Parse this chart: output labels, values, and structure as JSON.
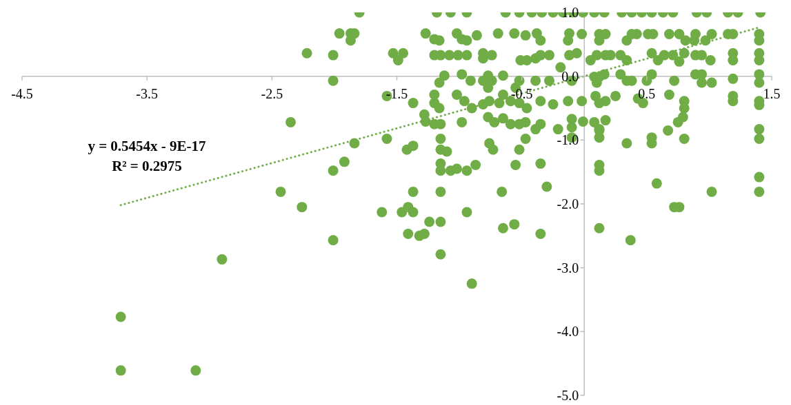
{
  "chart_data": {
    "type": "scatter",
    "xlim": [
      -4.5,
      1.5
    ],
    "xticks": [
      -4.5,
      -3.5,
      -2.5,
      -1.5,
      -0.5,
      0.5,
      1.5
    ],
    "ylim": [
      -5,
      1
    ],
    "yticks": [
      {
        "value": 1,
        "label": "1.0"
      },
      {
        "value": 0,
        "label": "0.0"
      },
      {
        "value": -1,
        "label": "-1.0"
      },
      {
        "value": -2,
        "label": "-2.0"
      },
      {
        "value": -3,
        "label": "-3.0"
      },
      {
        "value": -4,
        "label": "-4.0"
      },
      {
        "value": -5,
        "label": "-5.0"
      }
    ],
    "annotations": [
      "y = 0.5454x - 9E-17",
      "R² = 0.2975"
    ],
    "series": [
      {
        "marker": "circle",
        "color": "#70ad47",
        "x": [
          -1.8,
          -1.18,
          -1.07,
          -0.94,
          -0.63,
          -0.52,
          -0.42,
          -0.34,
          -0.25,
          -0.17,
          -0.09,
          -0.01,
          0.08,
          0.16,
          0.3,
          0.38,
          0.46,
          0.54,
          0.63,
          0.71,
          0.9,
          0.98,
          1.15,
          1.23,
          1.41,
          -1.96,
          -1.87,
          -1.84,
          -1.87,
          -1.27,
          -1.2,
          -1.16,
          -1.02,
          -0.98,
          -0.94,
          -0.86,
          -0.69,
          -0.56,
          -0.47,
          -0.38,
          -0.35,
          -0.12,
          -0.13,
          -0.02,
          0.12,
          0.17,
          0.12,
          0.34,
          0.38,
          0.42,
          0.51,
          0.55,
          0.68,
          0.76,
          0.81,
          0.89,
          0.88,
          0.97,
          1.02,
          1.15,
          1.19,
          1.4,
          1.4,
          -2.22,
          -2.01,
          -1.53,
          -1.45,
          -1.49,
          -1.2,
          -1.15,
          -1.08,
          -1.01,
          -0.94,
          -0.81,
          -0.81,
          -0.74,
          -0.51,
          -0.46,
          -0.39,
          -0.35,
          -0.28,
          -0.19,
          -0.12,
          -0.06,
          0.05,
          0.1,
          0.17,
          0.21,
          0.29,
          0.34,
          0.54,
          0.59,
          0.64,
          0.71,
          0.76,
          0.8,
          0.89,
          0.94,
          1.01,
          1.19,
          1.19,
          1.4,
          1.4,
          -2.01,
          -1.12,
          -1.16,
          -0.98,
          -0.91,
          -0.81,
          -0.77,
          -0.74,
          -0.77,
          -0.65,
          -0.55,
          -0.52,
          -0.39,
          -0.28,
          -0.1,
          0.08,
          0.12,
          0.16,
          0.1,
          0.29,
          0.34,
          0.38,
          0.5,
          0.54,
          0.72,
          0.89,
          0.94,
          0.94,
          1.02,
          1.19,
          1.4,
          1.4,
          -1.58,
          -1.37,
          -1.2,
          -1.2,
          -1.16,
          -1.02,
          -0.96,
          -0.9,
          -0.81,
          -0.76,
          -0.68,
          -0.65,
          -0.59,
          -0.52,
          -0.46,
          -0.35,
          -0.25,
          -0.13,
          -0.02,
          0.09,
          0.12,
          0.17,
          0.25,
          0.43,
          0.47,
          0.68,
          0.8,
          0.8,
          1.19,
          1.19,
          1.4,
          1.4,
          -2.35,
          -1.28,
          -1.27,
          -1.2,
          -1.15,
          -0.98,
          -0.77,
          -0.72,
          -0.65,
          -0.59,
          -0.52,
          -0.47,
          -0.39,
          -0.35,
          -0.21,
          -0.1,
          -0.1,
          -0.01,
          0.08,
          0.17,
          0.12,
          0.75,
          0.79,
          0.67,
          -1.84,
          -1.58,
          -1.42,
          -1.37,
          -1.15,
          -1.15,
          -1.1,
          -0.76,
          -0.73,
          -0.47,
          -0.52,
          -0.1,
          0.12,
          0.12,
          0.34,
          0.54,
          0.54,
          0.8,
          1.4,
          1.4,
          -1.92,
          -2.01,
          -1.15,
          -1.15,
          -1.07,
          -1.02,
          -0.94,
          -0.87,
          -0.55,
          -0.35,
          0.12,
          0.12,
          -2.43,
          -1.37,
          -1.15,
          -0.66,
          -0.3,
          0.58,
          1.02,
          1.4,
          1.4,
          -2.26,
          -2.01,
          -1.62,
          -1.46,
          -1.41,
          -1.37,
          -1.41,
          -1.32,
          -1.28,
          -1.24,
          -1.15,
          -1.15,
          -0.94,
          -0.9,
          -0.65,
          -0.56,
          -0.35,
          0.12,
          0.37,
          0.72,
          0.76,
          -2.9,
          -3.71,
          -3.71,
          -3.11
        ],
        "values": [
          1.0,
          1.0,
          1.0,
          1.0,
          1.0,
          1.0,
          1.0,
          1.0,
          1.0,
          1.0,
          1.0,
          1.0,
          1.0,
          1.0,
          1.0,
          1.0,
          1.0,
          1.0,
          1.0,
          1.0,
          1.0,
          1.0,
          1.0,
          1.0,
          1.0,
          0.67,
          0.67,
          0.67,
          0.56,
          0.67,
          0.58,
          0.56,
          0.67,
          0.58,
          0.56,
          0.64,
          0.67,
          0.67,
          0.64,
          0.67,
          0.56,
          0.67,
          0.56,
          0.66,
          0.66,
          0.66,
          0.56,
          0.56,
          0.66,
          0.66,
          0.66,
          0.66,
          0.66,
          0.66,
          0.56,
          0.66,
          0.56,
          0.56,
          0.66,
          0.66,
          0.66,
          0.66,
          0.56,
          0.36,
          0.33,
          0.36,
          0.36,
          0.25,
          0.33,
          0.33,
          0.33,
          0.33,
          0.33,
          0.36,
          0.28,
          0.33,
          0.25,
          0.25,
          0.28,
          0.33,
          0.33,
          0.14,
          0.33,
          0.36,
          0.25,
          0.33,
          0.33,
          0.33,
          0.33,
          0.25,
          0.36,
          0.25,
          0.33,
          0.33,
          0.23,
          0.36,
          0.33,
          0.33,
          0.25,
          0.36,
          0.25,
          0.36,
          0.25,
          -0.07,
          0.01,
          -0.1,
          0.03,
          -0.07,
          -0.07,
          0.01,
          -0.07,
          -0.18,
          0.01,
          -0.18,
          -0.07,
          -0.07,
          -0.07,
          -0.07,
          -0.01,
          -0.01,
          0.03,
          -0.1,
          0.03,
          -0.07,
          -0.07,
          -0.07,
          0.03,
          -0.07,
          0.03,
          0.03,
          -0.1,
          -0.1,
          -0.04,
          0.03,
          -0.1,
          -0.31,
          -0.42,
          -0.29,
          -0.42,
          -0.5,
          -0.29,
          -0.39,
          -0.5,
          -0.44,
          -0.39,
          -0.42,
          -0.29,
          -0.39,
          -0.42,
          -0.5,
          -0.39,
          -0.44,
          -0.39,
          -0.39,
          -0.31,
          -0.42,
          -0.39,
          -0.31,
          -0.35,
          -0.42,
          -0.29,
          -0.39,
          -0.5,
          -0.31,
          -0.39,
          -0.39,
          -0.45,
          -0.72,
          -0.6,
          -0.71,
          -0.75,
          -0.75,
          -0.72,
          -0.64,
          -0.72,
          -0.66,
          -0.75,
          -0.75,
          -0.72,
          -0.83,
          -0.75,
          -0.83,
          -0.67,
          -0.8,
          -0.71,
          -0.72,
          -0.69,
          -0.83,
          -0.72,
          -0.64,
          -0.85,
          -1.05,
          -0.98,
          -1.15,
          -1.09,
          -0.98,
          -1.15,
          -1.18,
          -1.05,
          -1.15,
          -0.98,
          -1.15,
          -0.96,
          -0.96,
          -0.85,
          -1.05,
          -0.96,
          -1.05,
          -0.98,
          -0.83,
          -0.98,
          -1.34,
          -1.48,
          -1.37,
          -1.48,
          -1.48,
          -1.45,
          -1.48,
          -1.39,
          -1.39,
          -1.37,
          -1.39,
          -1.48,
          -1.81,
          -1.81,
          -1.81,
          -1.81,
          -1.73,
          -1.68,
          -1.81,
          -1.58,
          -1.81,
          -2.05,
          -2.57,
          -2.13,
          -2.13,
          -2.05,
          -2.13,
          -2.47,
          -2.5,
          -2.47,
          -2.28,
          -2.28,
          -2.79,
          -2.13,
          -3.25,
          -2.38,
          -2.32,
          -2.47,
          -2.38,
          -2.57,
          -2.05,
          -2.05,
          -2.87,
          -3.77,
          -4.61,
          -4.61
        ]
      },
      {
        "type": "line",
        "marker": "none",
        "color": "#70ad47",
        "line_style": "dotted",
        "x": [
          -3.71,
          1.41
        ],
        "values": [
          -2.02,
          0.77
        ]
      }
    ]
  }
}
